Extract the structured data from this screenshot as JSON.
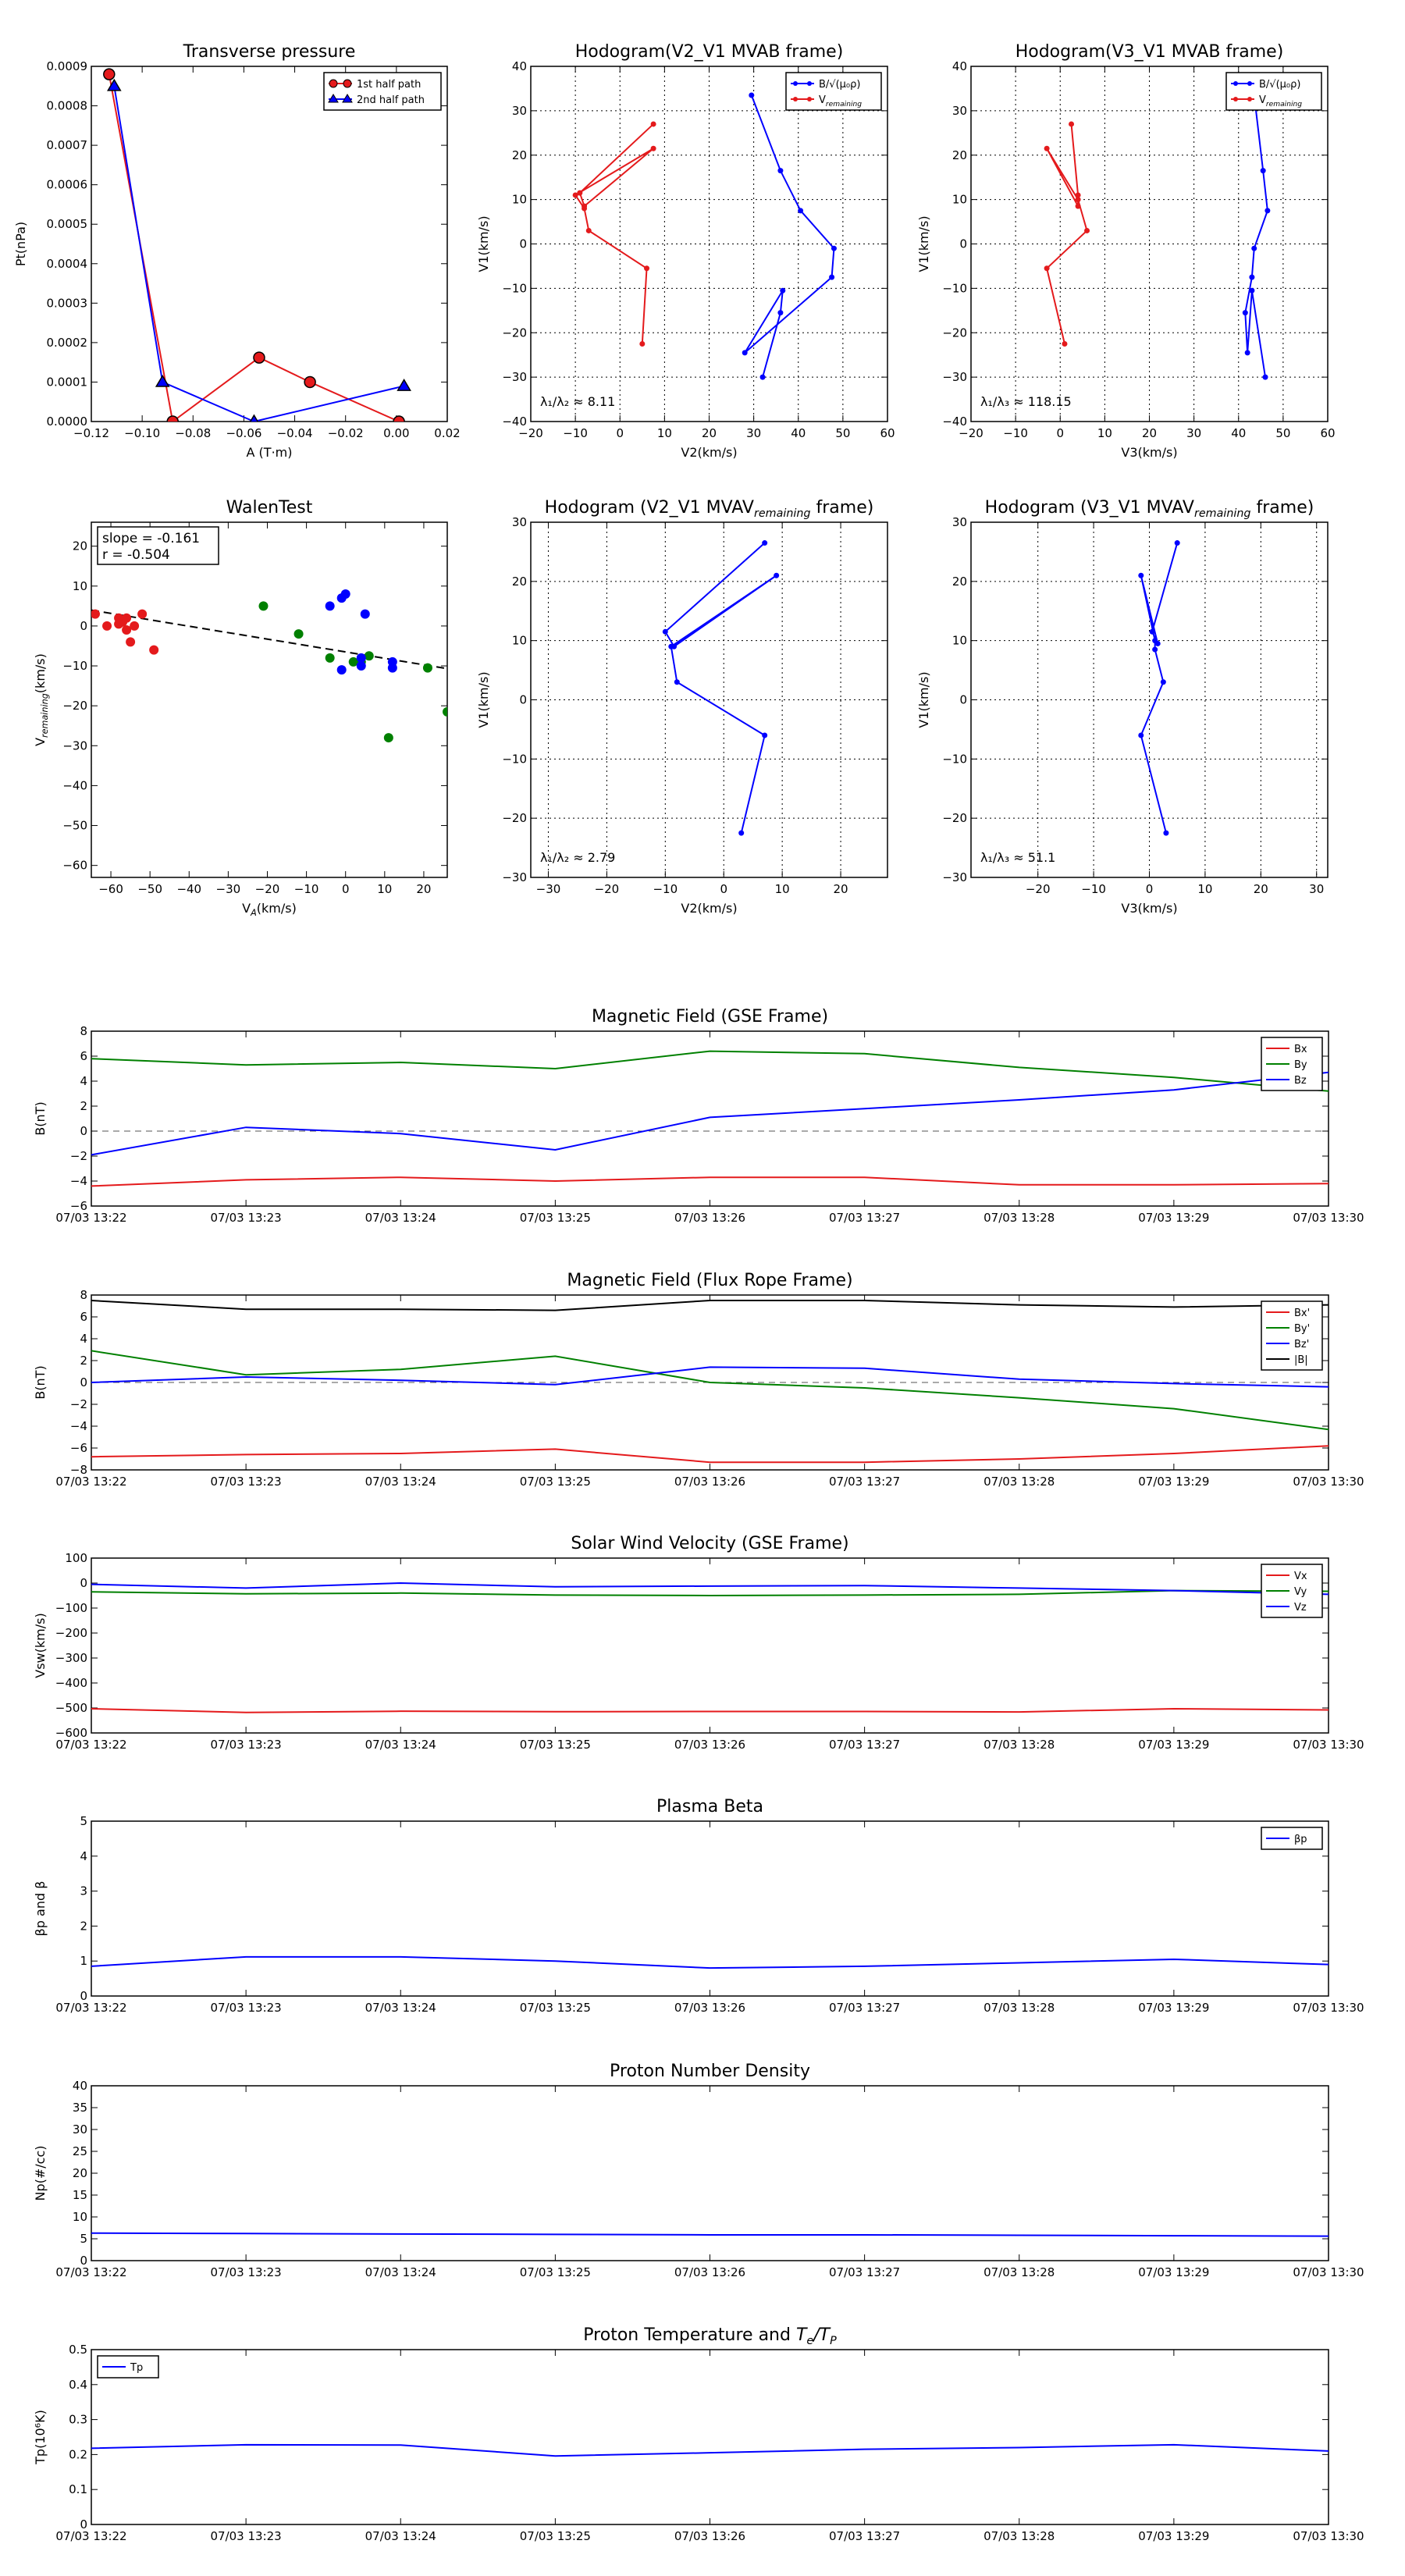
{
  "colors": {
    "red": "#e41a1c",
    "blue": "#0000ff",
    "green": "#008000",
    "black": "#000000",
    "bg": "#ffffff"
  },
  "time_ticks": [
    "07/03 13:22",
    "07/03 13:23",
    "07/03 13:24",
    "07/03 13:25",
    "07/03 13:26",
    "07/03 13:27",
    "07/03 13:28",
    "07/03 13:29",
    "07/03 13:30"
  ],
  "chart_data": [
    {
      "id": "transverse-pressure",
      "type": "line",
      "title": "Transverse pressure",
      "xlabel": "A (T·m)",
      "ylabel": "Pt(nPa)",
      "xlim": [
        -0.12,
        0.02
      ],
      "ylim": [
        0,
        0.0009
      ],
      "xticks": [
        -0.12,
        -0.1,
        -0.08,
        -0.06,
        -0.04,
        -0.02,
        0.0,
        0.02
      ],
      "xtick_labels": [
        "−0.12",
        "−0.10",
        "−0.08",
        "−0.06",
        "−0.04",
        "−0.02",
        "0.00",
        "0.02"
      ],
      "yticks": [
        0,
        0.0001,
        0.0002,
        0.0003,
        0.0004,
        0.0005,
        0.0006,
        0.0007,
        0.0008,
        0.0009
      ],
      "ytick_labels": [
        "0.0000",
        "0.0001",
        "0.0002",
        "0.0003",
        "0.0004",
        "0.0005",
        "0.0006",
        "0.0007",
        "0.0008",
        "0.0009"
      ],
      "grid": false,
      "legend": "top-right",
      "series": [
        {
          "name": "1st half path",
          "color": "#e41a1c",
          "marker": "circle",
          "x": [
            -0.113,
            -0.088,
            -0.054,
            -0.034,
            0.001
          ],
          "y": [
            0.00088,
            0.0,
            0.000162,
            0.0001,
            0.0
          ]
        },
        {
          "name": "2nd half path",
          "color": "#0000ff",
          "marker": "triangle",
          "x": [
            -0.111,
            -0.092,
            -0.056,
            0.003
          ],
          "y": [
            0.00085,
            0.0001,
            0.0,
            9e-05
          ]
        }
      ]
    },
    {
      "id": "hodogram-v2-mvab",
      "type": "line",
      "title": "Hodogram(V2_V1 MVAB frame)",
      "xlabel": "V2(km/s)",
      "ylabel": "V1(km/s)",
      "xlim": [
        -20,
        60
      ],
      "ylim": [
        -40,
        40
      ],
      "xticks": [
        -20,
        -10,
        0,
        10,
        20,
        30,
        40,
        50,
        60
      ],
      "yticks": [
        -40,
        -30,
        -20,
        -10,
        0,
        10,
        20,
        30,
        40
      ],
      "grid": true,
      "legend": "top-right",
      "annotation": "λ₁/λ₂ ≈ 8.11",
      "series": [
        {
          "name": "B/√(μ₀ρ)",
          "color": "#0000ff",
          "x": [
            29.5,
            36,
            40.5,
            48,
            47.5,
            28,
            36.5,
            36,
            32
          ],
          "y": [
            33.5,
            16.5,
            7.5,
            -1,
            -7.5,
            -24.5,
            -10.5,
            -15.5,
            -30
          ]
        },
        {
          "name": "V_remaining",
          "color": "#e41a1c",
          "x": [
            7.5,
            -9,
            -8,
            7.5,
            -10,
            -8,
            -7,
            6,
            5
          ],
          "y": [
            27,
            11.5,
            8.5,
            21.5,
            11,
            8,
            3,
            -5.5,
            -22.5
          ]
        }
      ]
    },
    {
      "id": "hodogram-v3-mvab",
      "type": "line",
      "title": "Hodogram(V3_V1 MVAB frame)",
      "xlabel": "V3(km/s)",
      "ylabel": "V1(km/s)",
      "xlim": [
        -20,
        60
      ],
      "ylim": [
        -40,
        40
      ],
      "xticks": [
        -20,
        -10,
        0,
        10,
        20,
        30,
        40,
        50,
        60
      ],
      "yticks": [
        -40,
        -30,
        -20,
        -10,
        0,
        10,
        20,
        30,
        40
      ],
      "grid": true,
      "legend": "top-right",
      "annotation": "λ₁/λ₃ ≈ 118.15",
      "series": [
        {
          "name": "B/√(μ₀ρ)",
          "color": "#0000ff",
          "x": [
            43.5,
            45.5,
            46.5,
            43.5,
            43,
            41.5,
            42,
            43,
            46
          ],
          "y": [
            33.5,
            16.5,
            7.5,
            -1,
            -7.5,
            -15.5,
            -24.5,
            -10.5,
            -30
          ]
        },
        {
          "name": "V_remaining",
          "color": "#e41a1c",
          "x": [
            2.5,
            4,
            4,
            -3,
            4,
            6,
            -3,
            1
          ],
          "y": [
            27,
            11,
            8.5,
            21.5,
            10,
            3,
            -5.5,
            -22.5
          ]
        }
      ]
    },
    {
      "id": "walen-test",
      "type": "scatter",
      "title": "WalenTest",
      "xlabel": "V_A(km/s)",
      "ylabel": "V_remaining(km/s)",
      "xlim": [
        -65,
        26
      ],
      "ylim": [
        -63,
        26
      ],
      "xticks": [
        -60,
        -50,
        -40,
        -30,
        -20,
        -10,
        0,
        10,
        20
      ],
      "yticks": [
        -60,
        -50,
        -40,
        -30,
        -20,
        -10,
        0,
        10,
        20
      ],
      "grid": false,
      "annotation_lines": [
        "slope = -0.161",
        "r = -0.504"
      ],
      "fit_line": {
        "slope": -0.161,
        "intercept": -6.5
      },
      "series": [
        {
          "name": "",
          "color": "#e41a1c",
          "x": [
            -64,
            -61,
            -58,
            -57,
            -56,
            -55,
            -54,
            -52,
            -49,
            -58,
            -56
          ],
          "y": [
            3,
            0,
            2,
            1,
            -1,
            -4,
            0,
            3,
            -6,
            0.5,
            2
          ]
        },
        {
          "name": "",
          "color": "#008000",
          "x": [
            -21,
            -12,
            -4,
            2,
            6,
            11,
            21,
            26,
            4
          ],
          "y": [
            5,
            -2,
            -8,
            -9,
            -7.5,
            -28,
            -10.5,
            -21.5,
            -9
          ]
        },
        {
          "name": "",
          "color": "#0000ff",
          "x": [
            -4,
            -1,
            0,
            -1,
            5,
            4,
            12,
            12,
            4
          ],
          "y": [
            5,
            7,
            8,
            -11,
            3,
            -10,
            -9,
            -10.5,
            -8
          ]
        }
      ]
    },
    {
      "id": "hodogram-v2-mvav",
      "type": "line",
      "title": "Hodogram (V2_V1 MVAV_remaining frame)",
      "xlabel": "V2(km/s)",
      "ylabel": "V1(km/s)",
      "xlim": [
        -33,
        28
      ],
      "ylim": [
        -30,
        30
      ],
      "xticks": [
        -30,
        -20,
        -10,
        0,
        10,
        20
      ],
      "yticks": [
        -30,
        -20,
        -10,
        0,
        10,
        20,
        30
      ],
      "grid": true,
      "annotation": "λ₁/λ₂ ≈ 2.79",
      "series": [
        {
          "name": "",
          "color": "#0000ff",
          "x": [
            7,
            -10,
            -8.5,
            9,
            -9,
            -8,
            7,
            3
          ],
          "y": [
            26.5,
            11.5,
            9,
            21,
            9,
            3,
            -6,
            -22.5
          ]
        }
      ]
    },
    {
      "id": "hodogram-v3-mvav",
      "type": "line",
      "title": "Hodogram (V3_V1 MVAV_remaining frame)",
      "xlabel": "V3(km/s)",
      "ylabel": "V1(km/s)",
      "xlim": [
        -32,
        32
      ],
      "ylim": [
        -30,
        30
      ],
      "xticks": [
        -20,
        -10,
        0,
        10,
        20,
        30
      ],
      "yticks": [
        -30,
        -20,
        -10,
        0,
        10,
        20,
        30
      ],
      "grid": true,
      "annotation": "λ₁/λ₃ ≈ 51.1",
      "series": [
        {
          "name": "",
          "color": "#0000ff",
          "x": [
            5,
            0.5,
            1.5,
            -1.5,
            1,
            1,
            2.5,
            -1.5,
            3
          ],
          "y": [
            26.5,
            11.5,
            9.5,
            21,
            10,
            8.5,
            3,
            -6,
            -22.5
          ]
        }
      ]
    },
    {
      "id": "magnetic-field-gse",
      "type": "line",
      "title": "Magnetic Field (GSE Frame)",
      "ylabel": "B(nT)",
      "ylim": [
        -6,
        8
      ],
      "yticks": [
        -6,
        -4,
        -2,
        0,
        2,
        4,
        6,
        8
      ],
      "zero_line": true,
      "legend": "top-right",
      "x": [
        0,
        1,
        2,
        3,
        4,
        5,
        6,
        7,
        8
      ],
      "series": [
        {
          "name": "Bx",
          "color": "#e41a1c",
          "values": [
            -4.4,
            -3.9,
            -3.7,
            -4.0,
            -3.7,
            -3.7,
            -4.3,
            -4.3,
            -4.2
          ]
        },
        {
          "name": "By",
          "color": "#008000",
          "values": [
            5.8,
            5.3,
            5.5,
            5.0,
            6.4,
            6.2,
            5.1,
            4.3,
            3.2
          ]
        },
        {
          "name": "Bz",
          "color": "#0000ff",
          "values": [
            -1.9,
            0.3,
            -0.2,
            -1.5,
            1.1,
            1.8,
            2.5,
            3.3,
            4.7
          ]
        }
      ]
    },
    {
      "id": "magnetic-field-flux-rope",
      "type": "line",
      "title": "Magnetic Field (Flux Rope Frame)",
      "ylabel": "B(nT)",
      "ylim": [
        -8,
        8
      ],
      "yticks": [
        -8,
        -6,
        -4,
        -2,
        0,
        2,
        4,
        6,
        8
      ],
      "zero_line": true,
      "legend": "top-right",
      "x": [
        0,
        1,
        2,
        3,
        4,
        5,
        6,
        7,
        8
      ],
      "series": [
        {
          "name": "Bx'",
          "color": "#e41a1c",
          "values": [
            -6.8,
            -6.6,
            -6.5,
            -6.1,
            -7.3,
            -7.3,
            -7.0,
            -6.5,
            -5.8
          ]
        },
        {
          "name": "By'",
          "color": "#008000",
          "values": [
            2.9,
            0.7,
            1.2,
            2.4,
            0.0,
            -0.5,
            -1.4,
            -2.4,
            -4.3
          ]
        },
        {
          "name": "Bz'",
          "color": "#0000ff",
          "values": [
            0.0,
            0.5,
            0.2,
            -0.2,
            1.4,
            1.3,
            0.3,
            -0.1,
            -0.4
          ]
        },
        {
          "name": "|B|",
          "color": "#000000",
          "values": [
            7.5,
            6.7,
            6.7,
            6.6,
            7.5,
            7.5,
            7.1,
            6.9,
            7.1
          ]
        }
      ]
    },
    {
      "id": "solar-wind-velocity",
      "type": "line",
      "title": "Solar Wind Velocity (GSE Frame)",
      "ylabel": "Vsw(km/s)",
      "ylim": [
        -600,
        100
      ],
      "yticks": [
        -600,
        -500,
        -400,
        -300,
        -200,
        -100,
        0,
        100
      ],
      "legend": "top-right",
      "x": [
        0,
        1,
        2,
        3,
        4,
        5,
        6,
        7,
        8
      ],
      "series": [
        {
          "name": "Vx",
          "color": "#e41a1c",
          "values": [
            -503,
            -518,
            -513,
            -515,
            -514,
            -514,
            -516,
            -503,
            -508
          ]
        },
        {
          "name": "Vy",
          "color": "#008000",
          "values": [
            -35,
            -43,
            -40,
            -48,
            -50,
            -48,
            -45,
            -30,
            -33
          ]
        },
        {
          "name": "Vz",
          "color": "#0000ff",
          "values": [
            -5,
            -20,
            0,
            -15,
            -12,
            -10,
            -20,
            -30,
            -45
          ]
        }
      ]
    },
    {
      "id": "plasma-beta",
      "type": "line",
      "title": "Plasma Beta",
      "ylabel": "βp and β",
      "ylim": [
        0,
        5
      ],
      "yticks": [
        0,
        1,
        2,
        3,
        4,
        5
      ],
      "legend": "top-right",
      "x": [
        0,
        1,
        2,
        3,
        4,
        5,
        6,
        7,
        8
      ],
      "series": [
        {
          "name": "βp",
          "color": "#0000ff",
          "values": [
            0.85,
            1.12,
            1.12,
            1.0,
            0.8,
            0.85,
            0.95,
            1.05,
            0.9
          ]
        }
      ]
    },
    {
      "id": "proton-density",
      "type": "line",
      "title": "Proton Number Density",
      "ylabel": "Np(#/cc)",
      "ylim": [
        0,
        40
      ],
      "yticks": [
        0,
        5,
        10,
        15,
        20,
        25,
        30,
        35,
        40
      ],
      "x": [
        0,
        1,
        2,
        3,
        4,
        5,
        6,
        7,
        8
      ],
      "series": [
        {
          "name": "",
          "color": "#0000ff",
          "values": [
            6.3,
            6.2,
            6.1,
            6.0,
            5.9,
            5.9,
            5.8,
            5.7,
            5.6
          ]
        }
      ]
    },
    {
      "id": "proton-temperature",
      "type": "line",
      "title": "Proton Temperature and Te/Tp",
      "ylabel": "Tp(10⁶K)",
      "ylim": [
        0,
        0.5
      ],
      "yticks": [
        0,
        0.1,
        0.2,
        0.3,
        0.4,
        0.5
      ],
      "legend": "top-left",
      "x": [
        0,
        1,
        2,
        3,
        4,
        5,
        6,
        7,
        8
      ],
      "series": [
        {
          "name": "Tp",
          "color": "#0000ff",
          "values": [
            0.218,
            0.228,
            0.227,
            0.196,
            0.205,
            0.215,
            0.22,
            0.228,
            0.21
          ]
        }
      ]
    }
  ]
}
